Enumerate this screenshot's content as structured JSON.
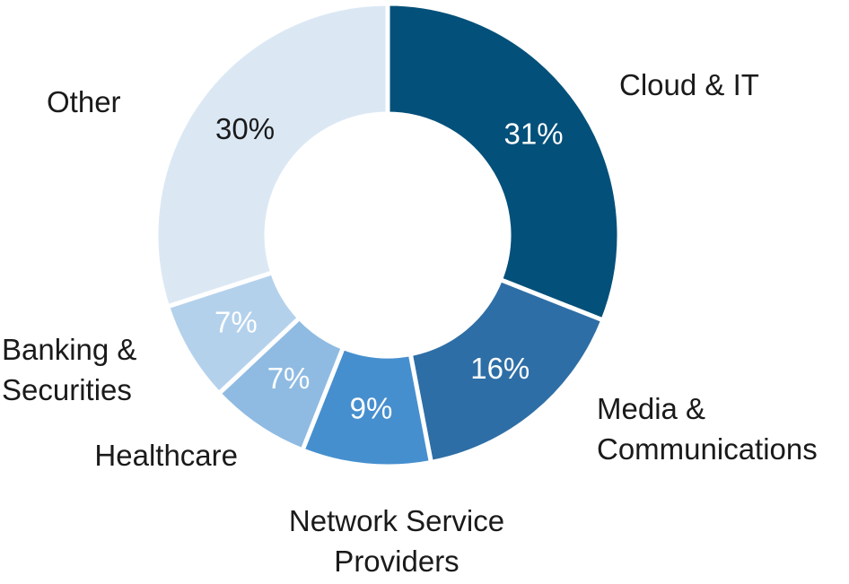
{
  "chart_data": {
    "type": "donut",
    "categories": [
      "Cloud & IT",
      "Media &\nCommunications",
      "Network Service\nProviders",
      "Healthcare",
      "Banking &\nSecurities",
      "Other"
    ],
    "values": [
      31,
      16,
      9,
      7,
      7,
      30
    ],
    "value_labels": [
      "31%",
      "16%",
      "9%",
      "7%",
      "7%",
      "30%"
    ],
    "colors": [
      "#03507a",
      "#2e6ea6",
      "#468fcf",
      "#8fbbe2",
      "#b4d1ec",
      "#dbe8f4"
    ]
  }
}
